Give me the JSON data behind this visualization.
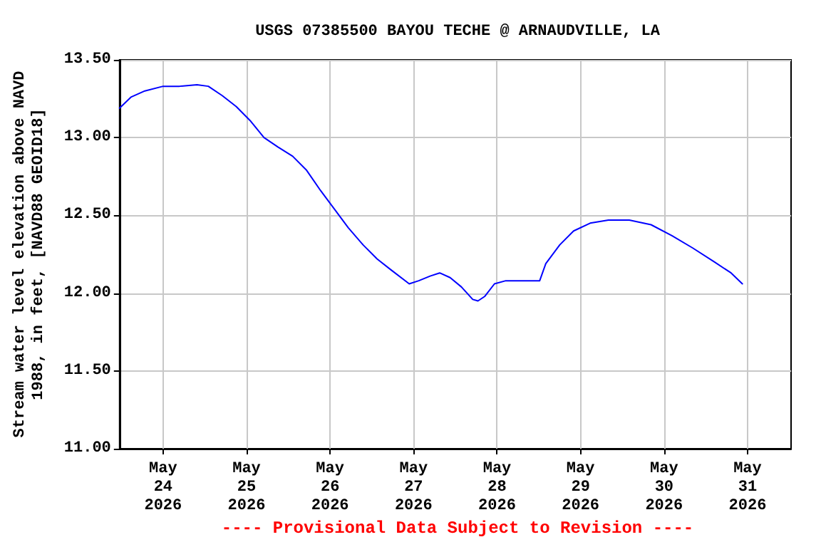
{
  "chart_data": {
    "type": "line",
    "title": "USGS 07385500 BAYOU TECHE @ ARNAUDVILLE, LA",
    "ylabel": "Stream water level elevation above NAVD\n1988, in feet, [NAVD88 GEOID18]",
    "annotations": [
      "---- Provisional Data Subject to Revision ----"
    ],
    "x": [
      "2026-05-23T11:30",
      "2026-05-23T14:45",
      "2026-05-23T18:45",
      "2026-05-24T00:00",
      "2026-05-24T04:45",
      "2026-05-24T09:45",
      "2026-05-24T13:00",
      "2026-05-24T17:00",
      "2026-05-24T21:00",
      "2026-05-25T01:00",
      "2026-05-25T05:00",
      "2026-05-25T09:00",
      "2026-05-25T13:15",
      "2026-05-25T17:15",
      "2026-05-25T21:15",
      "2026-05-26T01:15",
      "2026-05-26T05:15",
      "2026-05-26T09:30",
      "2026-05-26T13:30",
      "2026-05-26T17:30",
      "2026-05-26T22:45",
      "2026-05-27T01:30",
      "2026-05-27T04:45",
      "2026-05-27T07:30",
      "2026-05-27T10:30",
      "2026-05-27T13:45",
      "2026-05-27T17:00",
      "2026-05-27T18:30",
      "2026-05-27T20:30",
      "2026-05-27T23:15",
      "2026-05-28T02:30",
      "2026-05-28T07:45",
      "2026-05-28T12:15",
      "2026-05-28T14:00",
      "2026-05-28T18:00",
      "2026-05-28T22:00",
      "2026-05-29T02:45",
      "2026-05-29T08:00",
      "2026-05-29T14:00",
      "2026-05-29T20:15",
      "2026-05-30T02:15",
      "2026-05-30T08:15",
      "2026-05-30T14:30",
      "2026-05-30T19:15",
      "2026-05-30T22:30"
    ],
    "series": [
      {
        "color": "#0000ff",
        "values": [
          13.19,
          13.26,
          13.3,
          13.33,
          13.33,
          13.34,
          13.33,
          13.27,
          13.2,
          13.11,
          13.0,
          12.94,
          12.88,
          12.79,
          12.66,
          12.54,
          12.42,
          12.31,
          12.22,
          12.15,
          12.06,
          12.08,
          12.11,
          12.13,
          12.1,
          12.04,
          11.96,
          11.95,
          11.98,
          12.06,
          12.08,
          12.08,
          12.08,
          12.19,
          12.31,
          12.4,
          12.45,
          12.47,
          12.47,
          12.44,
          12.37,
          12.29,
          12.2,
          12.13,
          12.06
        ]
      }
    ],
    "xlim": [
      "2026-05-23T11:30",
      "2026-05-31T12:30"
    ],
    "xticks": [
      {
        "value": "2026-05-24",
        "label": "May\n24\n2026"
      },
      {
        "value": "2026-05-25",
        "label": "May\n25\n2026"
      },
      {
        "value": "2026-05-26",
        "label": "May\n26\n2026"
      },
      {
        "value": "2026-05-27",
        "label": "May\n27\n2026"
      },
      {
        "value": "2026-05-28",
        "label": "May\n28\n2026"
      },
      {
        "value": "2026-05-29",
        "label": "May\n29\n2026"
      },
      {
        "value": "2026-05-30",
        "label": "May\n30\n2026"
      },
      {
        "value": "2026-05-31",
        "label": "May\n31\n2026"
      }
    ],
    "ylim": [
      11,
      13.5
    ],
    "yticks": [
      {
        "value": 11,
        "label": "11.00"
      },
      {
        "value": 11.5,
        "label": "11.50"
      },
      {
        "value": 12,
        "label": "12.00"
      },
      {
        "value": 12.5,
        "label": "12.50"
      },
      {
        "value": 13,
        "label": "13.00"
      },
      {
        "value": 13.5,
        "label": "13.50"
      }
    ],
    "grid": true,
    "marker": "none",
    "line_style": "solid"
  }
}
